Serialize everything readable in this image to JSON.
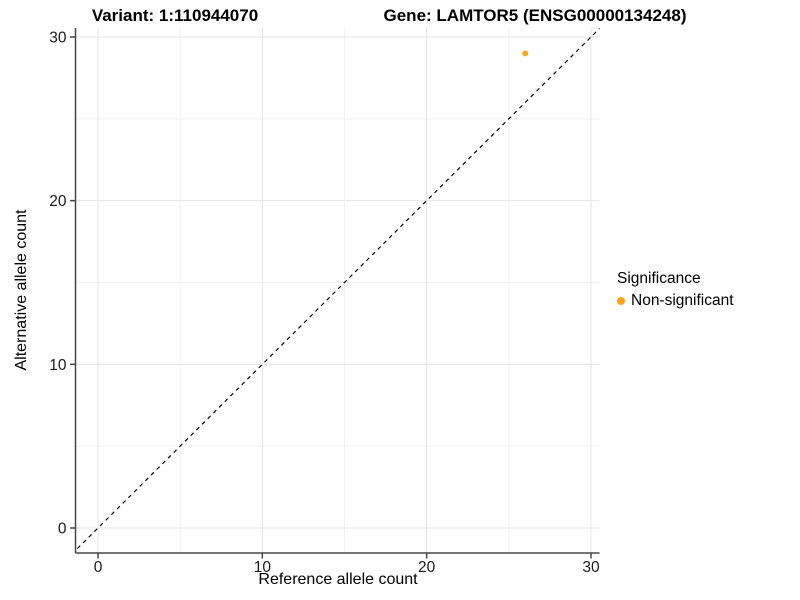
{
  "chart_data": {
    "type": "scatter",
    "title_left": "Variant: 1:110944070",
    "title_right": "Gene: LAMTOR5 (ENSG00000134248)",
    "xlabel": "Reference allele count",
    "ylabel": "Alternative allele count",
    "xlim": [
      -1.4,
      30.6
    ],
    "ylim": [
      -1.5,
      30.6
    ],
    "x_ticks": [
      0,
      10,
      20,
      30
    ],
    "y_ticks": [
      0,
      10,
      20,
      30
    ],
    "x_minor_ticks": [
      5,
      15,
      25
    ],
    "y_minor_ticks": [
      5,
      15,
      25
    ],
    "grid": true,
    "points": [
      {
        "x": 26,
        "y": 29,
        "series": "Non-significant"
      }
    ],
    "identity_line": {
      "style": "dashed",
      "from": -1.6,
      "to": 30.7
    },
    "legend": {
      "title": "Significance",
      "position": "right",
      "items": [
        {
          "label": "Non-significant",
          "color": "#FFA41C"
        }
      ]
    },
    "colors": {
      "point": "#FFA41C",
      "grid_major": "#E4E4E4",
      "grid_minor": "#F2F2F2",
      "axis_line": "#464646",
      "identity_line": "#000000"
    }
  }
}
